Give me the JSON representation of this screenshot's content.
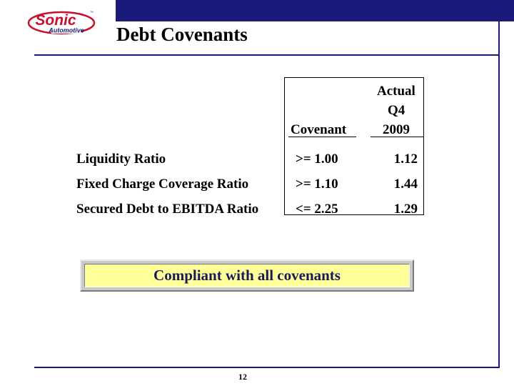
{
  "logo": {
    "brand": "Sonic",
    "sub": "Automotive",
    "tm": "™",
    "colors": {
      "red": "#c8102e",
      "navy": "#1a1a7a"
    }
  },
  "title": "Debt Covenants",
  "table": {
    "headers": {
      "covenant": "Covenant",
      "actual_line1": "Actual",
      "actual_line2": "Q4",
      "actual_line3": "2009"
    },
    "rows": [
      {
        "label": "Liquidity Ratio",
        "covenant": ">= 1.00",
        "actual": "1.12"
      },
      {
        "label": "Fixed Charge Coverage Ratio",
        "covenant": ">= 1.10",
        "actual": "1.44"
      },
      {
        "label": "Secured Debt to EBITDA Ratio",
        "covenant": "<= 2.25",
        "actual": "1.29"
      }
    ]
  },
  "banner": "Compliant with all covenants",
  "page_number": "12",
  "colors": {
    "navy": "#1a1a7a",
    "banner_fill": "#ffff99",
    "banner_frame": "#c9c9c9"
  }
}
